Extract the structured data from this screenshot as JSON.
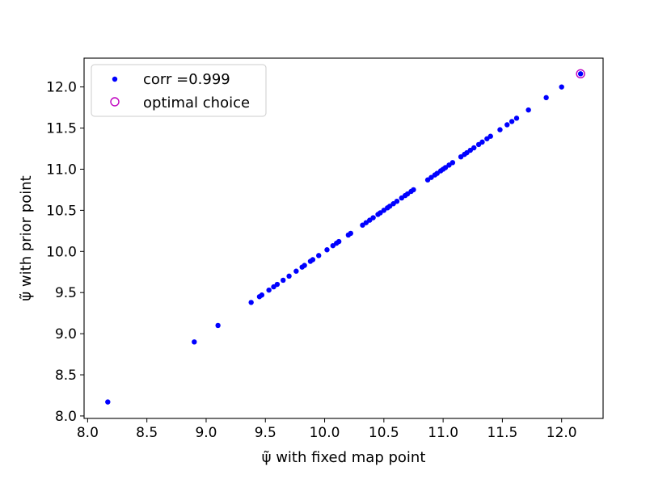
{
  "chart_data": {
    "type": "scatter",
    "xlabel": "ψ̃ with fixed map point",
    "ylabel": "ψ̃ with prior point",
    "xlim": [
      7.97,
      12.35
    ],
    "ylim": [
      7.97,
      12.35
    ],
    "xticks": [
      "8.0",
      "8.5",
      "9.0",
      "9.5",
      "10.0",
      "10.5",
      "11.0",
      "11.5",
      "12.0"
    ],
    "yticks": [
      "8.0",
      "8.5",
      "9.0",
      "9.5",
      "10.0",
      "10.5",
      "11.0",
      "11.5",
      "12.0"
    ],
    "grid": false,
    "legend_position": "upper-left",
    "series": [
      {
        "name": "corr =0.999",
        "marker": "filled-dot",
        "color": "#0000ff",
        "x": [
          8.17,
          8.9,
          9.1,
          9.38,
          9.45,
          9.47,
          9.53,
          9.57,
          9.6,
          9.65,
          9.7,
          9.76,
          9.81,
          9.83,
          9.88,
          9.9,
          9.95,
          10.02,
          10.07,
          10.1,
          10.12,
          10.2,
          10.22,
          10.32,
          10.35,
          10.38,
          10.41,
          10.45,
          10.47,
          10.5,
          10.53,
          10.55,
          10.58,
          10.61,
          10.65,
          10.68,
          10.7,
          10.73,
          10.75,
          10.87,
          10.9,
          10.93,
          10.95,
          10.98,
          11.0,
          11.02,
          11.05,
          11.08,
          11.15,
          11.18,
          11.2,
          11.23,
          11.26,
          11.3,
          11.33,
          11.37,
          11.4,
          11.48,
          11.54,
          11.58,
          11.62,
          11.72,
          11.87,
          12.0,
          12.16
        ],
        "y": [
          8.17,
          8.9,
          9.1,
          9.38,
          9.45,
          9.47,
          9.53,
          9.57,
          9.6,
          9.65,
          9.7,
          9.76,
          9.81,
          9.83,
          9.88,
          9.9,
          9.95,
          10.02,
          10.07,
          10.1,
          10.12,
          10.2,
          10.22,
          10.32,
          10.35,
          10.38,
          10.41,
          10.45,
          10.47,
          10.5,
          10.53,
          10.55,
          10.58,
          10.61,
          10.65,
          10.68,
          10.7,
          10.73,
          10.75,
          10.87,
          10.9,
          10.93,
          10.95,
          10.98,
          11.0,
          11.02,
          11.05,
          11.08,
          11.15,
          11.18,
          11.2,
          11.23,
          11.26,
          11.3,
          11.33,
          11.37,
          11.4,
          11.48,
          11.54,
          11.58,
          11.62,
          11.72,
          11.87,
          12.0,
          12.16
        ]
      },
      {
        "name": "optimal choice",
        "marker": "open-circle",
        "color": "#bf00bf",
        "x": [
          12.16
        ],
        "y": [
          12.16
        ]
      }
    ]
  }
}
